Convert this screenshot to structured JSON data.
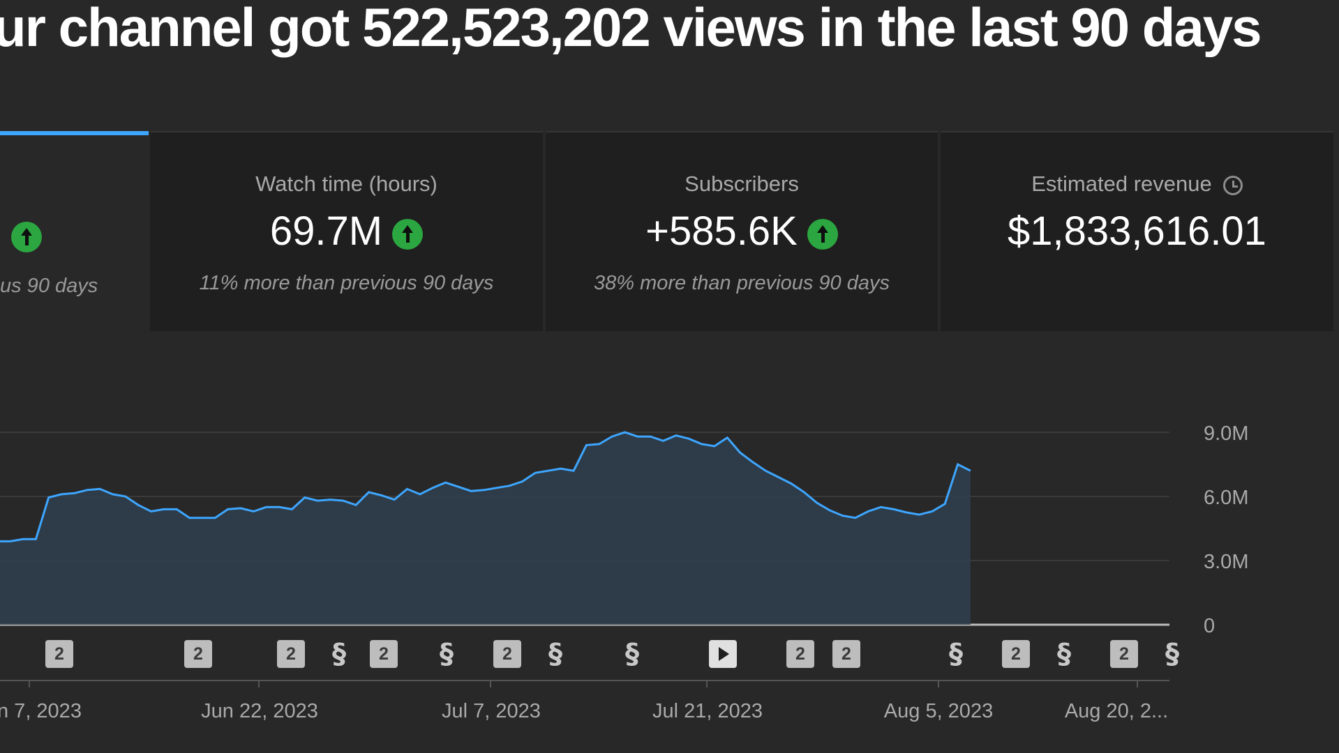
{
  "headline": "ur channel got 522,523,202 views in the last 90 days",
  "cards": [
    {
      "label": "",
      "value": "",
      "comparison": "us 90 days",
      "up": true
    },
    {
      "label": "Watch time (hours)",
      "value": "69.7M",
      "comparison": "11% more than previous 90 days",
      "up": true
    },
    {
      "label": "Subscribers",
      "value": "+585.6K",
      "comparison": "38% more than previous 90 days",
      "up": true
    },
    {
      "label": "Estimated revenue",
      "value": "$1,833,616.01",
      "comparison": "",
      "icon": "clock-icon"
    }
  ],
  "colors": {
    "accent": "#3ea6ff",
    "line": "#3ea6ff",
    "up": "#2ba640"
  },
  "chart_data": {
    "type": "area",
    "metric": "Views",
    "y_ticks": [
      "9.0M",
      "6.0M",
      "3.0M",
      "0"
    ],
    "ylim": [
      0,
      9000000
    ],
    "x_tick_labels": [
      "n 7, 2023",
      "Jun 22, 2023",
      "Jul 7, 2023",
      "Jul 21, 2023",
      "Aug 5, 2023",
      "Aug 20, 2..."
    ],
    "x_tick_days": [
      5,
      20,
      35,
      49,
      64,
      79
    ],
    "values": [
      4000000,
      3900000,
      3900000,
      4000000,
      4000000,
      5950000,
      6100000,
      6150000,
      6300000,
      6350000,
      6100000,
      6000000,
      5600000,
      5300000,
      5400000,
      5400000,
      5000000,
      5000000,
      5000000,
      5400000,
      5450000,
      5300000,
      5500000,
      5500000,
      5400000,
      5950000,
      5800000,
      5850000,
      5800000,
      5600000,
      6200000,
      6050000,
      5850000,
      6350000,
      6100000,
      6400000,
      6650000,
      6450000,
      6250000,
      6300000,
      6400000,
      6500000,
      6700000,
      7100000,
      7200000,
      7300000,
      7200000,
      8400000,
      8450000,
      8800000,
      9000000,
      8800000,
      8800000,
      8600000,
      8850000,
      8700000,
      8450000,
      8350000,
      8750000,
      8050000,
      7600000,
      7200000,
      6900000,
      6600000,
      6200000,
      5700000,
      5350000,
      5100000,
      5000000,
      5300000,
      5500000,
      5400000,
      5250000,
      5150000,
      5300000,
      5650000,
      7500000,
      7200000
    ],
    "markers": [
      {
        "day": 5,
        "type": "video-count",
        "label": "2"
      },
      {
        "day": 17,
        "type": "video-count",
        "label": "2"
      },
      {
        "day": 25,
        "type": "video-count",
        "label": "2"
      },
      {
        "day": 29,
        "type": "short"
      },
      {
        "day": 33,
        "type": "video-count",
        "label": "2"
      },
      {
        "day": 38,
        "type": "short"
      },
      {
        "day": 44,
        "type": "video-count",
        "label": "2"
      },
      {
        "day": 48,
        "type": "short"
      },
      {
        "day": 55,
        "type": "short"
      },
      {
        "day": 63,
        "type": "video"
      },
      {
        "day": 70,
        "type": "video-count",
        "label": "2"
      },
      {
        "day": 74,
        "type": "video-count",
        "label": "2"
      },
      {
        "day": 84,
        "type": "short"
      },
      {
        "day": 89,
        "type": "video-count",
        "label": "2"
      },
      {
        "day": 93,
        "type": "short"
      },
      {
        "day": 99,
        "type": "video-count",
        "label": "2"
      },
      {
        "day": 103,
        "type": "short"
      }
    ]
  }
}
